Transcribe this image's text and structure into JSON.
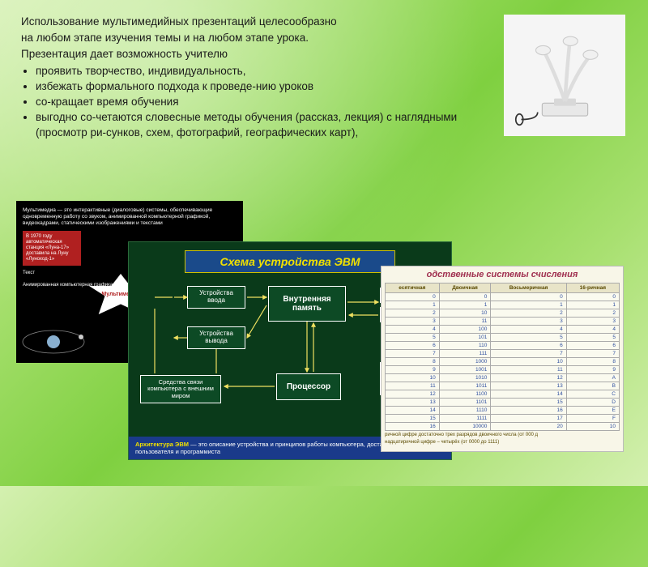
{
  "main": {
    "p1": "Использование мультимедийных презентаций целесообразно",
    "p2": "на любом этапе изучения темы и на любом этапе урока.",
    "p3": "Презентация дает возможность учителю",
    "bullets": [
      "проявить творчество, индивидуальность,",
      "избежать формального подхода к проведе-нию уроков",
      "со-кращает время обучения",
      "выгодно со-четаются словесные методы обучения (рассказ, лекция) с наглядными (просмотр ри-сунков, схем, фотографий, географических карт),"
    ]
  },
  "slide1": {
    "top": "Мультимедиа — это интерактивные (диалоговые) системы, обеспечивающие одновременную работу со звуком, анимированной компьютерной графикой, видеокадрами, статическими изображениями и текстами",
    "redbox": "В 1970 году автоматическая станция «Луна-17» доставила на Луну «Луноход-1»",
    "col": "Текст\n\nАнимированная компьютерная графика",
    "star": "Мультимедиа"
  },
  "slide2": {
    "title": "Схема устройства ЭВМ",
    "nodes": {
      "input": "Устройства ввода",
      "output": "Устройства вывода",
      "memory": "Внутренняя память",
      "cpu": "Процессор",
      "ext": "Средства связи компьютера с внешним миром",
      "right1": "Вне",
      "right2": "пам",
      "right_ext": "Ср\nдолгоср\nхра\nинфор"
    },
    "footer_b": "Архитектура ЭВМ",
    "footer_rest": " — это описание устройства и принципов работы компьютера, достаточное для пользователя и программиста",
    "colors": {
      "bg": "#0a3a1a",
      "title_bg": "#1a4a8a",
      "title_fg": "#f0e000",
      "node_bg": "#0d4a25"
    }
  },
  "slide3": {
    "title": "одственные системы счисления",
    "columns": [
      "есятичная",
      "Двоичная",
      "Восьмеричная",
      "16-ричная"
    ],
    "rows": [
      [
        "0",
        "0",
        "0",
        "0"
      ],
      [
        "1",
        "1",
        "1",
        "1"
      ],
      [
        "2",
        "10",
        "2",
        "2"
      ],
      [
        "3",
        "11",
        "3",
        "3"
      ],
      [
        "4",
        "100",
        "4",
        "4"
      ],
      [
        "5",
        "101",
        "5",
        "5"
      ],
      [
        "6",
        "110",
        "6",
        "6"
      ],
      [
        "7",
        "111",
        "7",
        "7"
      ],
      [
        "8",
        "1000",
        "10",
        "8"
      ],
      [
        "9",
        "1001",
        "11",
        "9"
      ],
      [
        "10",
        "1010",
        "12",
        "A"
      ],
      [
        "11",
        "1011",
        "13",
        "B"
      ],
      [
        "12",
        "1100",
        "14",
        "C"
      ],
      [
        "13",
        "1101",
        "15",
        "D"
      ],
      [
        "14",
        "1110",
        "16",
        "E"
      ],
      [
        "15",
        "1111",
        "17",
        "F"
      ],
      [
        "16",
        "10000",
        "20",
        "10"
      ]
    ],
    "note1": "ричной цифре достаточно трех разрядов двоичного числа (от 000 д",
    "note2": "надцатиричной цифре – четырёх (от 0000 до 1111)"
  }
}
